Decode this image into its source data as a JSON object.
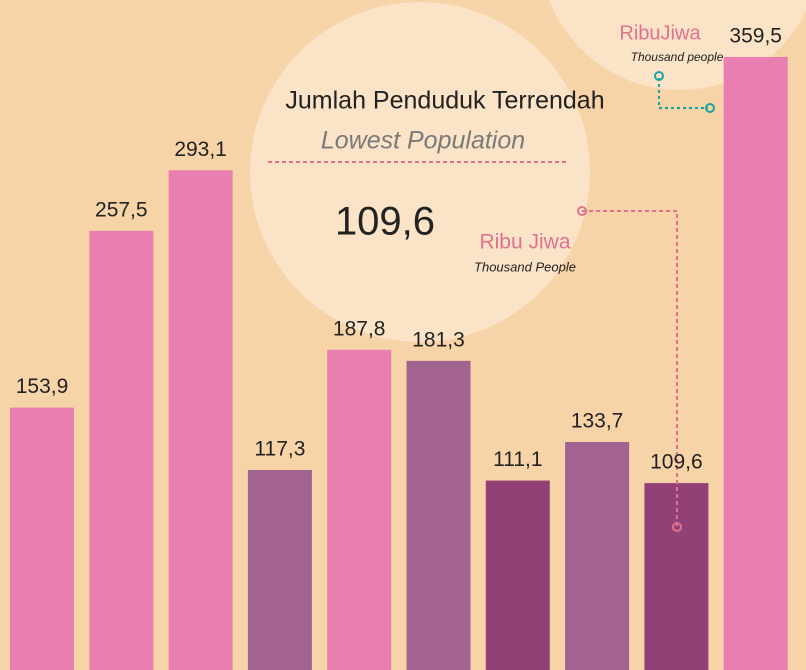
{
  "chart_data": {
    "type": "bar",
    "values": [
      153.9,
      257.5,
      293.1,
      117.3,
      187.8,
      181.3,
      111.1,
      133.7,
      109.6,
      359.5
    ],
    "value_labels": [
      "153,9",
      "257,5",
      "293,1",
      "117,3",
      "187,8",
      "181,3",
      "111,1",
      "133,7",
      "109,6",
      "359,5"
    ],
    "colors": [
      "#e97fb1",
      "#e97fb1",
      "#e97fb1",
      "#a26390",
      "#e97fb1",
      "#a26390",
      "#924177",
      "#a26390",
      "#924177",
      "#e97fb1"
    ],
    "annotations": {
      "title": "Jumlah Penduduk Terrendah",
      "subtitle": "Lowest Population",
      "value": "109,6",
      "unit": "Ribu Jiwa",
      "unit_en": "Thousand People",
      "unit_top": "RibuJiwa",
      "unit_top_en": "Thousand people"
    }
  }
}
